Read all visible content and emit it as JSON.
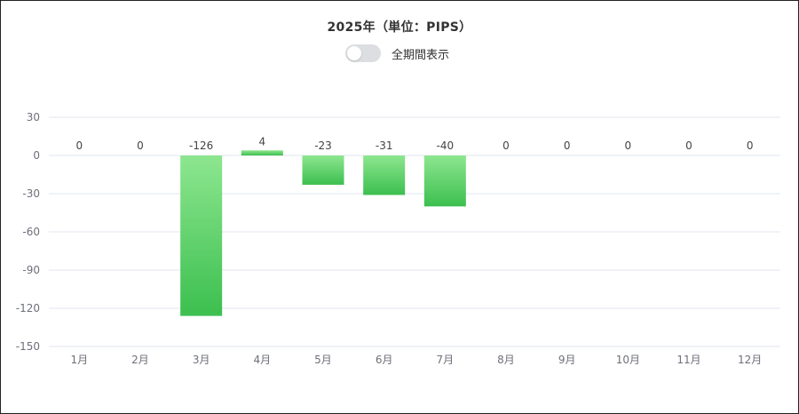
{
  "title": "2025年（単位：PIPS）",
  "toggle": {
    "label": "全期間表示",
    "checked": false,
    "off_color": "#dcdee2"
  },
  "colors": {
    "bar_top": "#8de68f",
    "bar_bottom": "#3cbf4f",
    "grid": "#e0e6f1",
    "axis_text": "#6e7079",
    "label_text": "#444444"
  },
  "chart_data": {
    "type": "bar",
    "categories": [
      "1月",
      "2月",
      "3月",
      "4月",
      "5月",
      "6月",
      "7月",
      "8月",
      "9月",
      "10月",
      "11月",
      "12月"
    ],
    "values": [
      0,
      0,
      -126,
      4,
      -23,
      -31,
      -40,
      0,
      0,
      0,
      0,
      0
    ],
    "data_labels": [
      "0",
      "0",
      "-126",
      "4",
      "-23",
      "-31",
      "-40",
      "0",
      "0",
      "0",
      "0",
      "0"
    ],
    "ylim": [
      -150,
      30
    ],
    "yticks": [
      30,
      0,
      -30,
      -60,
      -90,
      -120,
      -150
    ],
    "grid": true,
    "legend": "none",
    "title": "2025年（単位：PIPS）",
    "xlabel": "",
    "ylabel": ""
  }
}
